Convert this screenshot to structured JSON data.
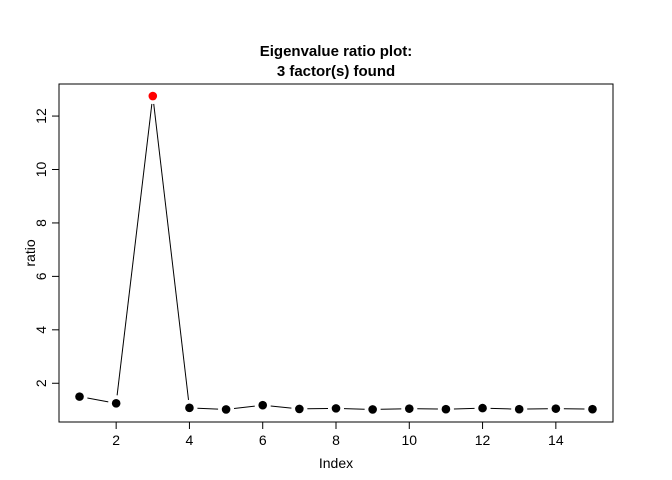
{
  "chart_data": {
    "type": "line",
    "title_line1": "Eigenvalue ratio plot:",
    "title_line2": "3 factor(s) found",
    "xlabel": "Index",
    "ylabel": "ratio",
    "xlim": [
      0.44,
      15.56
    ],
    "ylim": [
      0.55,
      13.2
    ],
    "x_ticks": [
      2,
      4,
      6,
      8,
      10,
      12,
      14
    ],
    "y_ticks": [
      2,
      4,
      6,
      8,
      10,
      12
    ],
    "grid": false,
    "x": [
      1,
      2,
      3,
      4,
      5,
      6,
      7,
      8,
      9,
      10,
      11,
      12,
      13,
      14,
      15
    ],
    "series": [
      {
        "values": [
          1.5,
          1.25,
          12.75,
          1.08,
          1.02,
          1.18,
          1.04,
          1.06,
          1.02,
          1.05,
          1.03,
          1.07,
          1.03,
          1.05,
          1.03
        ]
      }
    ],
    "highlight_index": 3,
    "colors": {
      "line": "#000000",
      "point": "#000000",
      "highlight": "#ff0000"
    }
  }
}
